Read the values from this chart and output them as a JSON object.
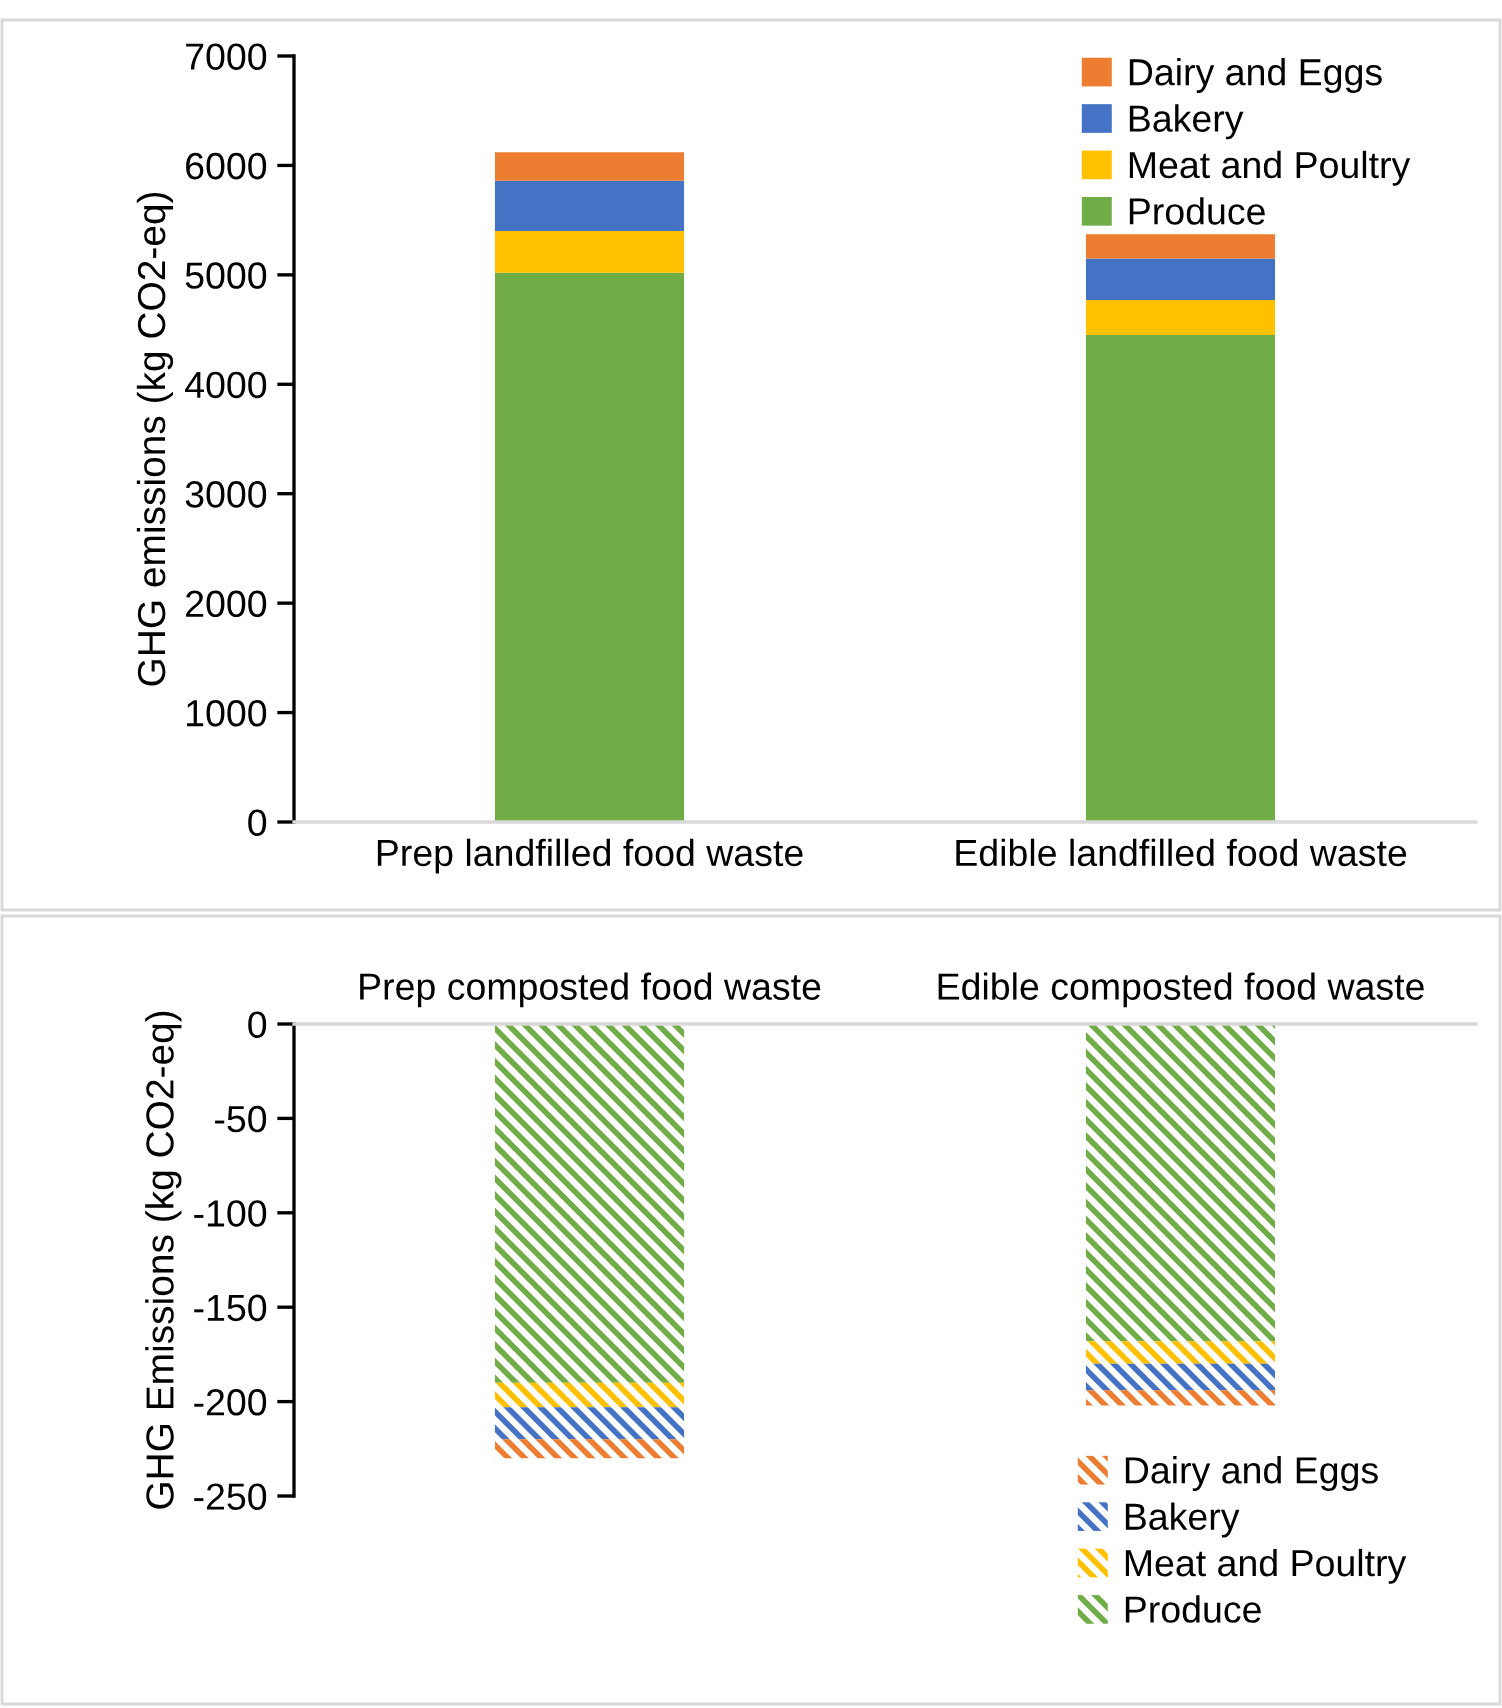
{
  "chart_data": [
    {
      "type": "bar",
      "stacked": true,
      "categories": [
        "Prep landfilled food waste",
        "Edible landfilled food waste"
      ],
      "ylabel": "GHG emissions (kg CO2-eq)",
      "ylim": [
        0,
        7000
      ],
      "yticks": [
        0,
        1000,
        2000,
        3000,
        4000,
        5000,
        6000,
        7000
      ],
      "grid": false,
      "legend": "top right",
      "series": [
        {
          "name": "Produce",
          "color": "#70ad47",
          "values": [
            5020,
            4450
          ]
        },
        {
          "name": "Meat and Poultry",
          "color": "#ffc000",
          "values": [
            380,
            320
          ]
        },
        {
          "name": "Bakery",
          "color": "#4472c4",
          "values": [
            460,
            380
          ]
        },
        {
          "name": "Dairy and Eggs",
          "color": "#ed7d31",
          "values": [
            260,
            220
          ]
        }
      ]
    },
    {
      "type": "bar",
      "stacked": true,
      "categories": [
        "Prep composted food waste",
        "Edible composted food waste"
      ],
      "ylabel": "GHG Emissions (kg CO2-eq)",
      "ylim": [
        -250,
        0
      ],
      "yticks": [
        0,
        {
          "value": -50,
          "label": "-50"
        },
        {
          "value": -100,
          "label": "-100"
        },
        {
          "value": -150,
          "label": "-150"
        },
        {
          "value": -200,
          "label": "-200"
        },
        {
          "value": -250,
          "label": "-250"
        }
      ],
      "grid": false,
      "legend": "bottom right",
      "series": [
        {
          "name": "Produce",
          "color": "#70ad47",
          "values": [
            -190,
            -168
          ]
        },
        {
          "name": "Meat and Poultry",
          "color": "#ffc000",
          "values": [
            -13,
            -12
          ]
        },
        {
          "name": "Bakery",
          "color": "#4472c4",
          "values": [
            -17,
            -14
          ]
        },
        {
          "name": "Dairy and Eggs",
          "color": "#ed7d31",
          "values": [
            -10,
            -8
          ]
        }
      ]
    }
  ]
}
